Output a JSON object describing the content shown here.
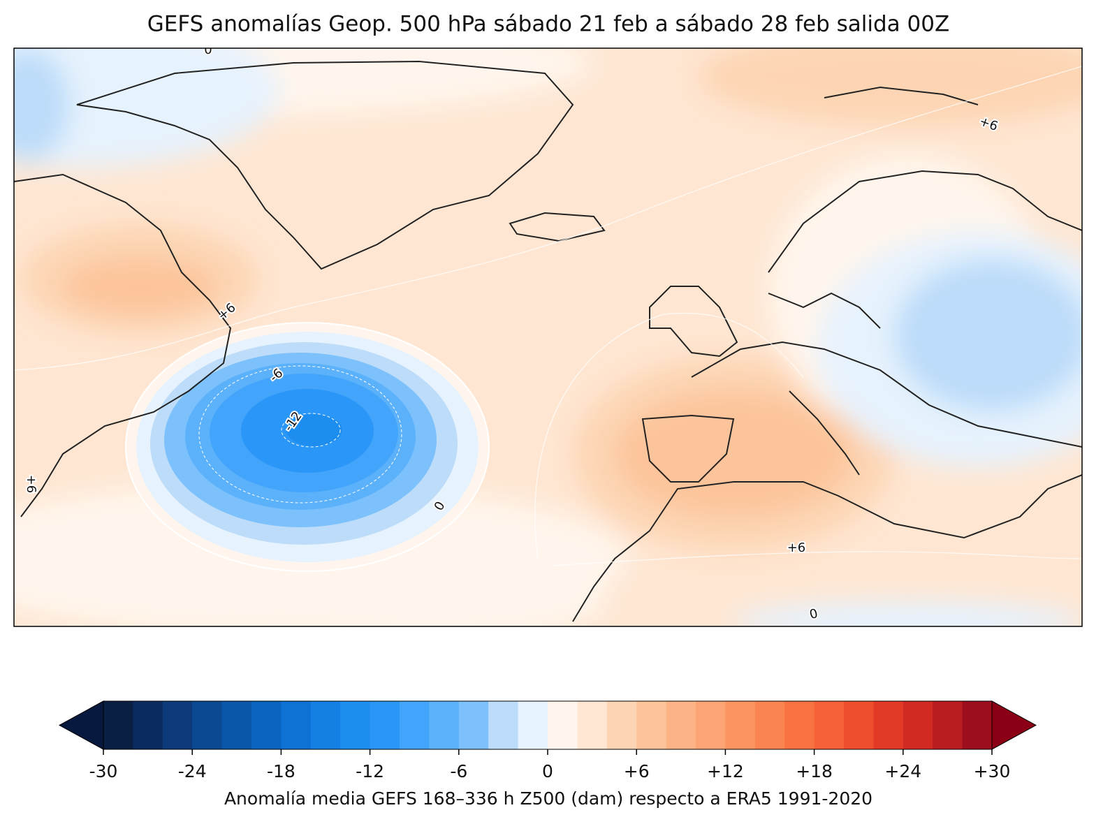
{
  "title": "GEFS anomalías Geop. 500 hPa sábado 21 feb a sábado 28 feb salida 00Z",
  "map": {
    "contour_labels": [
      "0",
      "+6",
      "+6",
      "-6",
      "-12",
      "+6",
      "0",
      "+6",
      "0"
    ]
  },
  "colorbar": {
    "label": "Anomalía media GEFS 168–336 h Z500 (dam) respecto a ERA5 1991-2020",
    "lim": [
      -30,
      30
    ],
    "ticks": [
      -30,
      -24,
      -18,
      -12,
      -6,
      0,
      {
        "value": 6,
        "label": "+6"
      },
      {
        "value": 12,
        "label": "+12"
      },
      {
        "value": 18,
        "label": "+18"
      },
      {
        "value": 24,
        "label": "+24"
      },
      {
        "value": 30,
        "label": "+30"
      }
    ],
    "colors": [
      "#0a1f44",
      "#0b2b5e",
      "#0c3a7a",
      "#0b4a93",
      "#0a57aa",
      "#0b64c0",
      "#0d72d4",
      "#1580e3",
      "#1e8df0",
      "#2a97f8",
      "#42a4fb",
      "#5cb1fb",
      "#7cc1fb",
      "#bcdcf9",
      "#e6f2fd",
      "#fff5ec",
      "#fee6d2",
      "#fdd5b4",
      "#fcc49a",
      "#fcb486",
      "#fca474",
      "#fb9460",
      "#fb8550",
      "#f97342",
      "#f66137",
      "#ef4e2e",
      "#e33a27",
      "#d02a22",
      "#b81c1f",
      "#9c0e1c"
    ],
    "under_color": "#08193f",
    "over_color": "#8b0015"
  }
}
